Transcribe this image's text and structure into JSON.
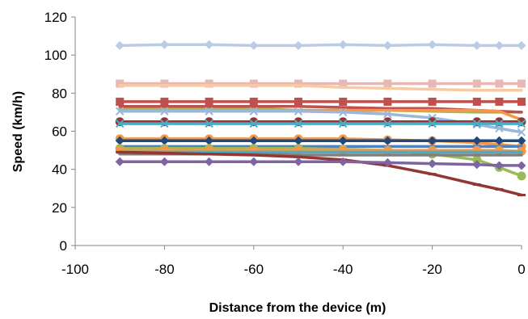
{
  "chart_data": {
    "type": "line",
    "title": "",
    "xlabel": "Distance from the device (m)",
    "ylabel": "Speed (km/h)",
    "xlim": [
      -100,
      0
    ],
    "ylim": [
      0,
      120
    ],
    "x_ticks": [
      -100,
      -80,
      -60,
      -40,
      -20,
      0
    ],
    "y_ticks": [
      0,
      20,
      40,
      60,
      80,
      100,
      120
    ],
    "grid": false,
    "legend": "none",
    "x": [
      -90,
      -80,
      -70,
      -60,
      -50,
      -40,
      -30,
      -20,
      -10,
      -5,
      0
    ],
    "series": [
      {
        "color": "#b9cbe5",
        "marker": "diamond",
        "values": [
          105,
          105.5,
          105.5,
          105,
          105,
          105.5,
          105,
          105.5,
          105,
          105,
          105
        ]
      },
      {
        "color": "#e8b8b6",
        "marker": "square",
        "values": [
          85,
          85,
          85,
          85,
          85,
          85,
          85,
          85,
          85,
          85,
          85
        ]
      },
      {
        "color": "#f8caa4",
        "marker": "none",
        "values": [
          84,
          84,
          84,
          84,
          84,
          83,
          82.5,
          82,
          81.5,
          81.5,
          81.5
        ]
      },
      {
        "color": "#c0504d",
        "marker": "square",
        "values": [
          75.5,
          75.5,
          75.5,
          75.5,
          75.5,
          75.5,
          75.5,
          75.5,
          75.5,
          75.5,
          75.5
        ]
      },
      {
        "color": "#9bbb59",
        "marker": "none",
        "values": [
          72,
          72,
          72,
          72,
          71,
          71,
          71,
          70.5,
          70,
          70,
          70
        ]
      },
      {
        "color": "#c0504d",
        "marker": "none",
        "values": [
          73,
          73,
          73,
          73,
          73,
          72.5,
          72,
          72,
          71,
          70.5,
          70
        ]
      },
      {
        "color": "#f79646",
        "marker": "none",
        "values": [
          71,
          71,
          71,
          71,
          71,
          71,
          71,
          71,
          71,
          70.5,
          66
        ]
      },
      {
        "color": "#9bb7d9",
        "marker": "x",
        "values": [
          70.5,
          70.5,
          70.5,
          70.5,
          70.5,
          70,
          69,
          67,
          63.5,
          61.5,
          59.5
        ]
      },
      {
        "color": "#943634",
        "marker": "circle",
        "values": [
          65,
          65,
          65,
          65,
          65,
          65,
          65,
          65,
          65,
          65,
          65
        ]
      },
      {
        "color": "#4bacc6",
        "marker": "x",
        "values": [
          64,
          64,
          64,
          64,
          64,
          64,
          64,
          64,
          64,
          64,
          64
        ]
      },
      {
        "color": "#f79646",
        "marker": "circle",
        "values": [
          56,
          56,
          56,
          56,
          56,
          56,
          55.5,
          55,
          54,
          53,
          52
        ]
      },
      {
        "color": "#1f497d",
        "marker": "diamond",
        "values": [
          55,
          55,
          55,
          55,
          55,
          55,
          55,
          55,
          55,
          55,
          55
        ]
      },
      {
        "color": "#4f81bd",
        "marker": "none",
        "values": [
          52,
          52,
          52,
          52,
          52,
          52,
          52,
          52,
          52,
          52,
          52
        ]
      },
      {
        "color": "#9bbb59",
        "marker": "circle",
        "values": [
          51,
          51,
          51,
          51,
          51,
          50.5,
          50,
          48,
          45,
          41,
          36.5
        ]
      },
      {
        "color": "#f79646",
        "marker": "circle",
        "values": [
          50,
          50,
          50,
          50,
          50,
          50,
          50,
          50,
          50,
          50,
          49.5
        ]
      },
      {
        "color": "#4bacc6",
        "marker": "none",
        "values": [
          49,
          49,
          49,
          49,
          49,
          49,
          49,
          49,
          49,
          49,
          49
        ]
      },
      {
        "color": "#7f7f7f",
        "marker": "none",
        "values": [
          48,
          48,
          48,
          48,
          47.5,
          47.5,
          47.5,
          47.5,
          47.5,
          47.5,
          47.5
        ]
      },
      {
        "color": "#943634",
        "marker": "dash",
        "values": [
          49,
          48.5,
          48,
          47.5,
          46.5,
          45,
          42,
          37.5,
          32,
          29.5,
          26.5
        ]
      },
      {
        "color": "#8064a2",
        "marker": "diamond",
        "values": [
          44,
          44,
          44,
          44,
          44,
          44,
          43.5,
          43,
          42.5,
          42,
          42
        ]
      }
    ]
  }
}
